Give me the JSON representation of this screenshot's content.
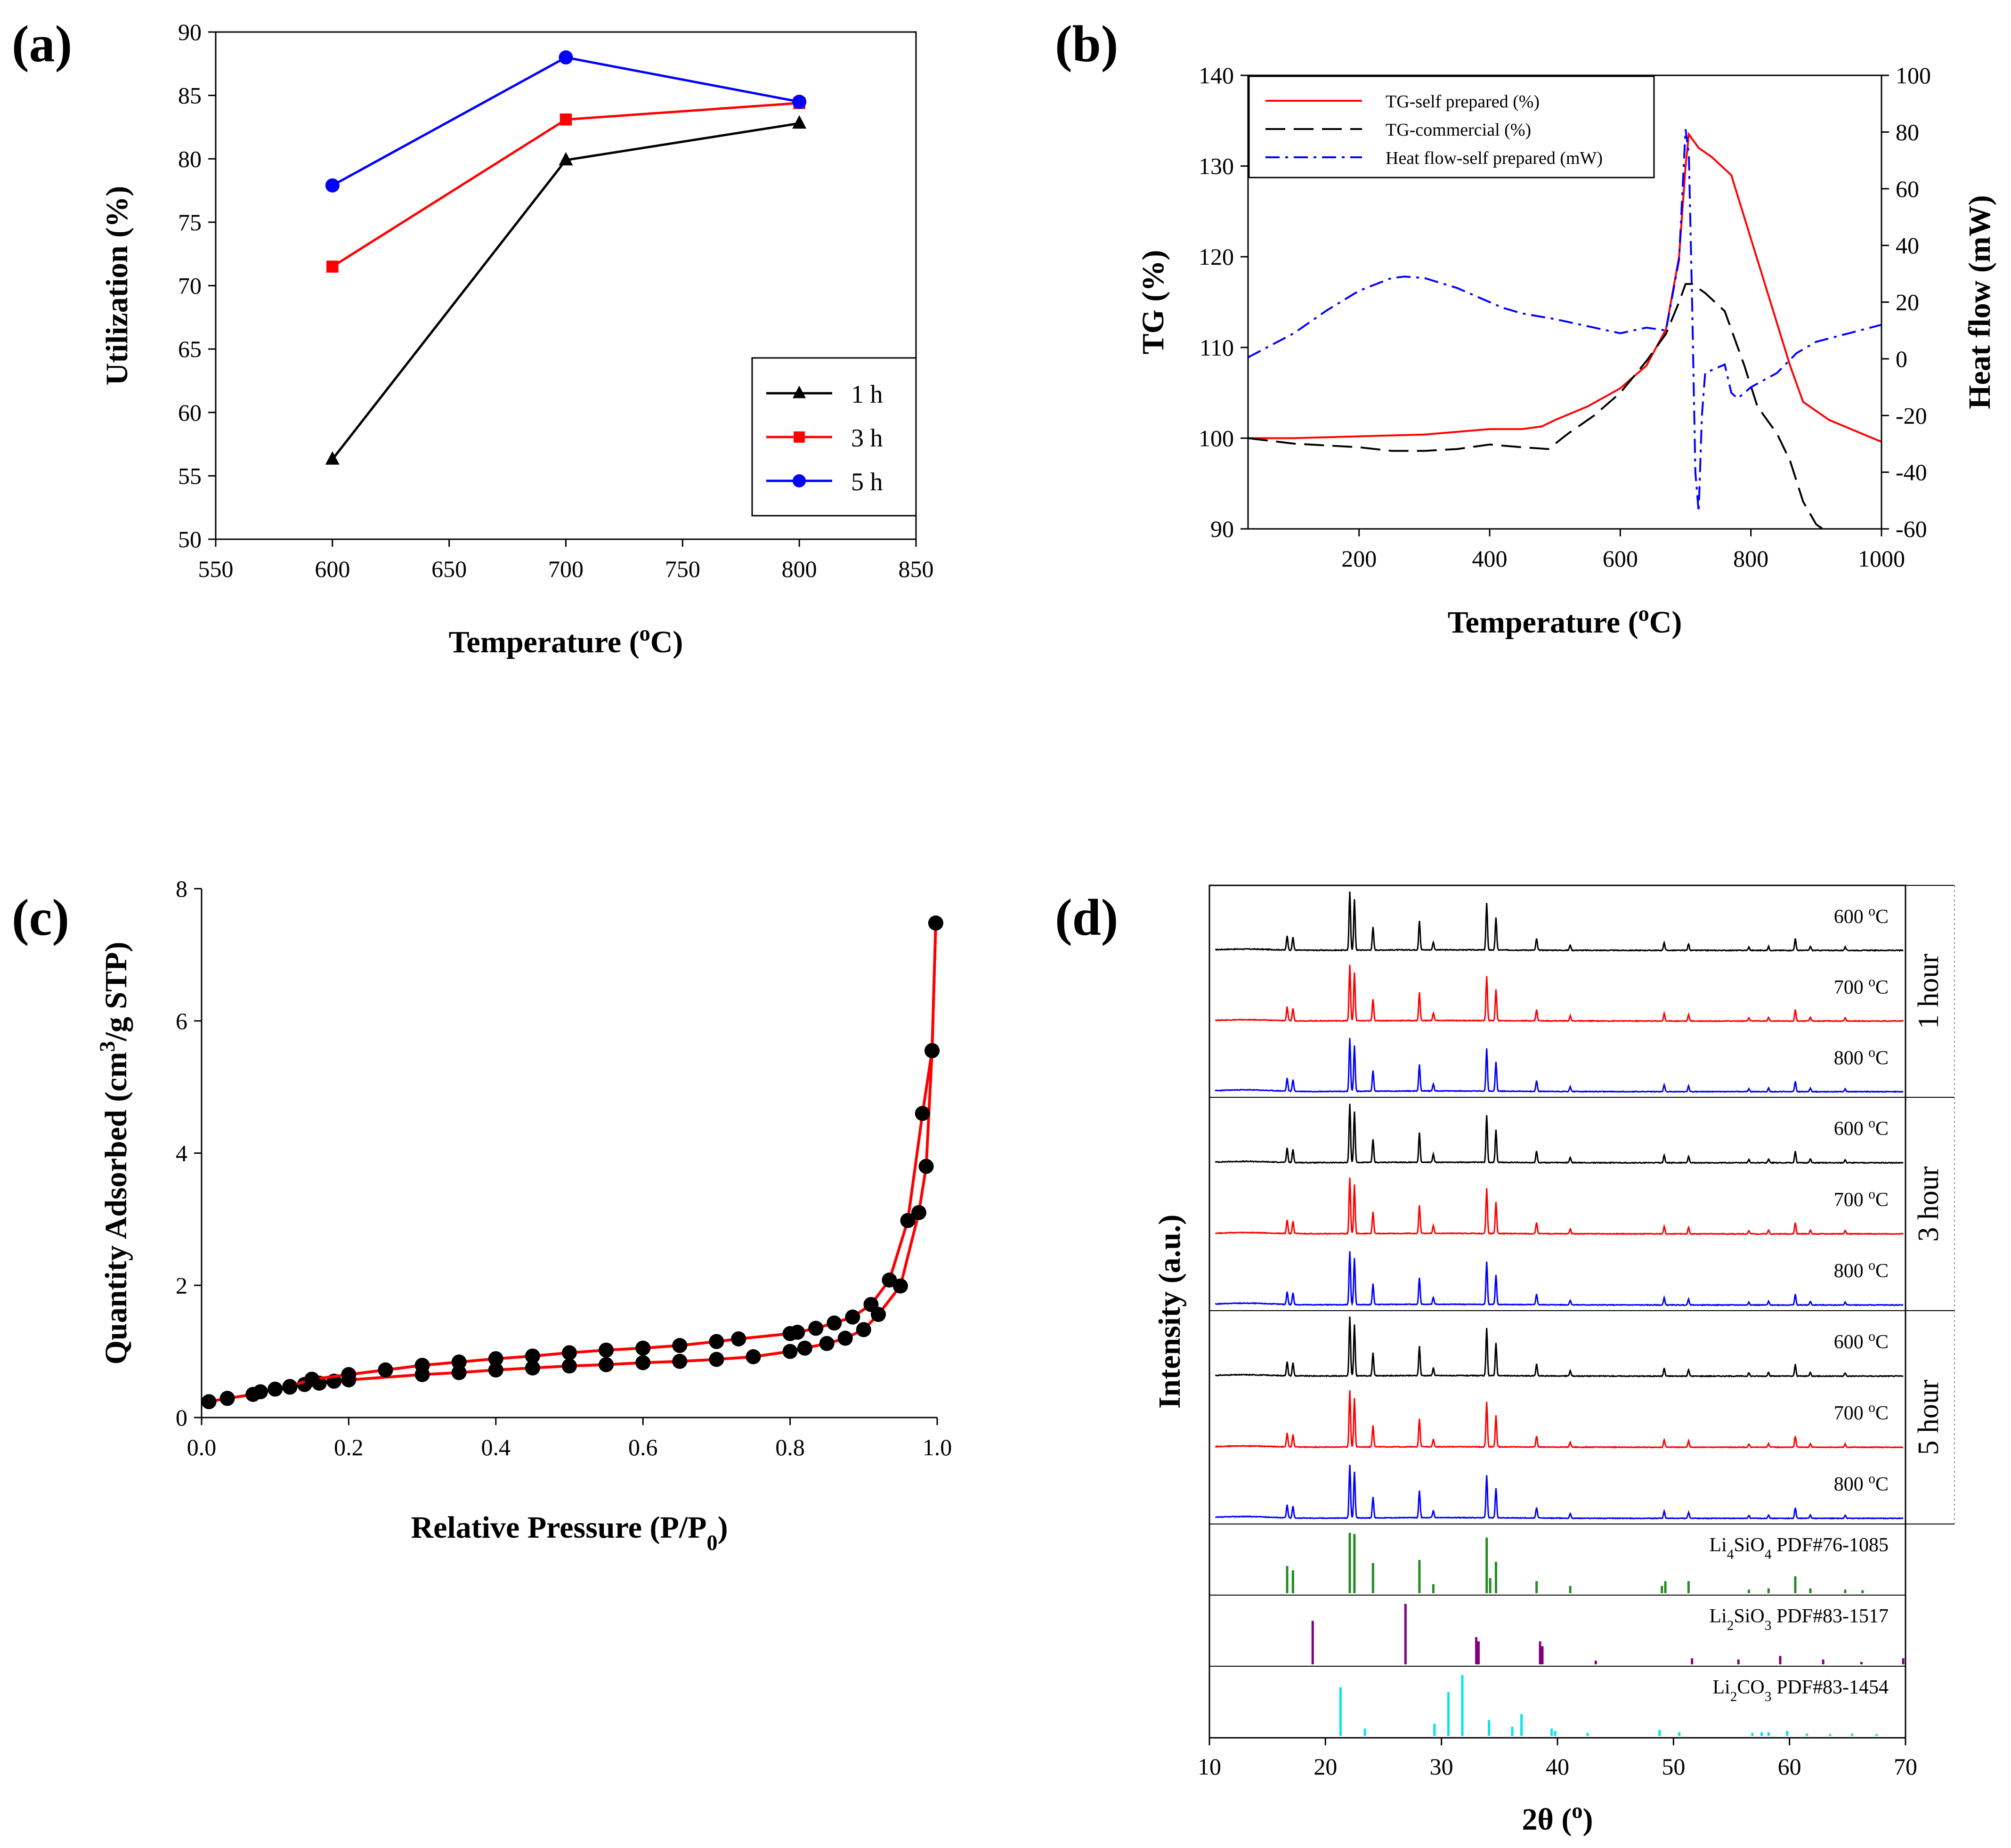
{
  "chart_data": [
    {
      "type": "line",
      "panel_label": "(a)",
      "xlabel": "Temperature (",
      "xlabel_sup": "o",
      "xlabel_end": "C)",
      "ylabel": "Utilization (%)",
      "xlim": [
        550,
        850
      ],
      "ylim": [
        50,
        90
      ],
      "xticks": [
        "550",
        "600",
        "650",
        "700",
        "750",
        "800",
        "850"
      ],
      "yticks": [
        "50",
        "55",
        "60",
        "65",
        "70",
        "75",
        "80",
        "85",
        "90"
      ],
      "x": [
        600,
        700,
        800
      ],
      "series": [
        {
          "name": "1 h",
          "values": [
            56.3,
            79.9,
            82.8
          ],
          "color": "#000000",
          "marker": "triangle"
        },
        {
          "name": "3 h",
          "values": [
            71.5,
            83.1,
            84.4
          ],
          "color": "#ff0000",
          "marker": "square"
        },
        {
          "name": "5 h",
          "values": [
            77.9,
            88.0,
            84.5
          ],
          "color": "#0000ff",
          "marker": "circle"
        }
      ],
      "legend": "bottom-right"
    },
    {
      "type": "line",
      "panel_label": "(b)",
      "xlabel": "Temperature (",
      "xlabel_sup": "o",
      "xlabel_end": "C)",
      "ylabel": "TG (%)",
      "y2label": "Heat flow (mW)",
      "xlim": [
        30,
        1000
      ],
      "ylim": [
        90,
        140
      ],
      "y2lim": [
        -60,
        100
      ],
      "xticks": [
        "200",
        "400",
        "600",
        "800",
        "1000"
      ],
      "yticks": [
        "90",
        "100",
        "110",
        "120",
        "130",
        "140"
      ],
      "y2ticks": [
        "-60",
        "-40",
        "-20",
        "0",
        "20",
        "40",
        "60",
        "80",
        "100"
      ],
      "series": [
        {
          "name": "TG-self prepared (%)",
          "axis": "left",
          "color": "#ff0000",
          "dash": "solid",
          "x": [
            30,
            100,
            200,
            300,
            400,
            450,
            480,
            500,
            550,
            600,
            640,
            670,
            690,
            700,
            705,
            710,
            720,
            740,
            770,
            800,
            830,
            860,
            880,
            920,
            960,
            1000
          ],
          "y": [
            100,
            100,
            100.2,
            100.4,
            101,
            101,
            101.3,
            102,
            103.5,
            105.5,
            108,
            112,
            120,
            130,
            133.5,
            133,
            132,
            131,
            129,
            122,
            115,
            108,
            104,
            102,
            100.8,
            99.6
          ]
        },
        {
          "name": "TG-commercial (%)",
          "axis": "left",
          "color": "#000000",
          "dash": "longdash",
          "x": [
            30,
            100,
            200,
            250,
            300,
            350,
            400,
            450,
            490,
            520,
            560,
            600,
            640,
            670,
            690,
            700,
            710,
            730,
            760,
            790,
            810,
            840,
            860,
            880,
            900,
            910
          ],
          "y": [
            100,
            99.4,
            99,
            98.6,
            98.6,
            98.8,
            99.3,
            99,
            98.8,
            100.5,
            102.5,
            105,
            108.5,
            111.5,
            115,
            117,
            117,
            116,
            114,
            108,
            103.5,
            100.5,
            97.5,
            93,
            90.5,
            90
          ]
        },
        {
          "name": "Heat flow-self prepared (mW)",
          "axis": "right",
          "color": "#0000ff",
          "dash": "dashdot",
          "x": [
            30,
            100,
            150,
            200,
            250,
            270,
            300,
            350,
            400,
            420,
            450,
            500,
            550,
            600,
            640,
            670,
            690,
            700,
            705,
            710,
            715,
            720,
            725,
            730,
            740,
            750,
            760,
            770,
            780,
            800,
            840,
            870,
            900,
            950,
            1000
          ],
          "y": [
            0.5,
            9,
            17,
            24,
            28.5,
            29,
            28.5,
            25,
            20,
            18,
            16,
            14,
            11.5,
            9,
            11,
            10,
            35,
            81,
            72,
            20,
            -40,
            -54,
            -20,
            -5,
            -4,
            -3,
            -2,
            -12,
            -14,
            -10,
            -5,
            2,
            6,
            9,
            12
          ]
        }
      ],
      "legend": "top-left"
    },
    {
      "type": "scatter",
      "panel_label": "(c)",
      "xlabel": "Relative Pressure (P/P",
      "xlabel_sub": "0",
      "xlabel_end": ")",
      "ylabel": "Quantity Adsorbed (cm",
      "ylabel_sup": "3",
      "ylabel_end": "/g STP)",
      "xlim": [
        0,
        1
      ],
      "ylim": [
        0,
        8
      ],
      "xticks": [
        "0.0",
        "0.2",
        "0.4",
        "0.6",
        "0.8",
        "1.0"
      ],
      "yticks": [
        "0",
        "2",
        "4",
        "6",
        "8"
      ],
      "series": [
        {
          "name": "adsorption",
          "x": [
            0.01,
            0.035,
            0.07,
            0.08,
            0.1,
            0.12,
            0.14,
            0.16,
            0.18,
            0.2,
            0.3,
            0.35,
            0.4,
            0.45,
            0.5,
            0.55,
            0.6,
            0.65,
            0.7,
            0.75,
            0.8,
            0.82,
            0.85,
            0.875,
            0.9,
            0.92,
            0.95,
            0.975,
            0.985,
            0.993,
            0.998
          ],
          "y": [
            0.24,
            0.29,
            0.35,
            0.39,
            0.43,
            0.46,
            0.5,
            0.52,
            0.55,
            0.57,
            0.65,
            0.68,
            0.72,
            0.75,
            0.78,
            0.8,
            0.83,
            0.85,
            0.88,
            0.92,
            1.0,
            1.05,
            1.12,
            1.2,
            1.33,
            1.56,
            1.99,
            3.1,
            3.8,
            5.55,
            7.48
          ]
        },
        {
          "name": "desorption",
          "x": [
            0.998,
            0.993,
            0.98,
            0.96,
            0.935,
            0.91,
            0.885,
            0.86,
            0.835,
            0.81,
            0.8,
            0.73,
            0.7,
            0.65,
            0.6,
            0.55,
            0.5,
            0.45,
            0.4,
            0.35,
            0.3,
            0.25,
            0.2,
            0.15,
            0.12
          ],
          "y": [
            7.48,
            5.55,
            4.6,
            2.98,
            2.08,
            1.71,
            1.52,
            1.43,
            1.35,
            1.29,
            1.27,
            1.19,
            1.15,
            1.09,
            1.05,
            1.02,
            0.98,
            0.93,
            0.89,
            0.84,
            0.79,
            0.72,
            0.65,
            0.58,
            0.47
          ]
        }
      ],
      "color_line": "#ff0000",
      "color_marker": "#000000"
    },
    {
      "type": "line",
      "panel_label": "(d)",
      "xlabel": "2θ (",
      "xlabel_sup": "o",
      "xlabel_end": ")",
      "ylabel": "Intensity (a.u.)",
      "xlim": [
        10,
        70
      ],
      "xticks": [
        "10",
        "20",
        "30",
        "40",
        "50",
        "60",
        "70"
      ],
      "groups": [
        {
          "name": "1 hour",
          "traces": [
            {
              "label": "600 ",
              "sup": "o",
              "unit": "C",
              "color": "#000000"
            },
            {
              "label": "700 ",
              "sup": "o",
              "unit": "C",
              "color": "#ff0000"
            },
            {
              "label": "800 ",
              "sup": "o",
              "unit": "C",
              "color": "#0000ff"
            }
          ]
        },
        {
          "name": "3 hour",
          "traces": [
            {
              "label": "600 ",
              "sup": "o",
              "unit": "C",
              "color": "#000000"
            },
            {
              "label": "700 ",
              "sup": "o",
              "unit": "C",
              "color": "#ff0000"
            },
            {
              "label": "800 ",
              "sup": "o",
              "unit": "C",
              "color": "#0000ff"
            }
          ]
        },
        {
          "name": "5 hour",
          "traces": [
            {
              "label": "600 ",
              "sup": "o",
              "unit": "C",
              "color": "#000000"
            },
            {
              "label": "700 ",
              "sup": "o",
              "unit": "C",
              "color": "#ff0000"
            },
            {
              "label": "800 ",
              "sup": "o",
              "unit": "C",
              "color": "#0000ff"
            }
          ]
        }
      ],
      "peaks": [
        {
          "pos": 16.7,
          "h": 0.22
        },
        {
          "pos": 17.2,
          "h": 0.2
        },
        {
          "pos": 22.1,
          "h": 0.9
        },
        {
          "pos": 22.5,
          "h": 0.78
        },
        {
          "pos": 24.1,
          "h": 0.35
        },
        {
          "pos": 28.1,
          "h": 0.45
        },
        {
          "pos": 29.3,
          "h": 0.12
        },
        {
          "pos": 33.9,
          "h": 0.72
        },
        {
          "pos": 34.7,
          "h": 0.5
        },
        {
          "pos": 38.2,
          "h": 0.18
        },
        {
          "pos": 41.1,
          "h": 0.08
        },
        {
          "pos": 49.2,
          "h": 0.12
        },
        {
          "pos": 51.3,
          "h": 0.1
        },
        {
          "pos": 56.5,
          "h": 0.05
        },
        {
          "pos": 58.2,
          "h": 0.06
        },
        {
          "pos": 60.5,
          "h": 0.18
        },
        {
          "pos": 61.8,
          "h": 0.06
        },
        {
          "pos": 64.8,
          "h": 0.05
        }
      ],
      "references": [
        {
          "prefix": "Li",
          "sub1": "4",
          "mid": "SiO",
          "sub2": "4",
          "suffix": " PDF#76-1085",
          "color": "#228b22",
          "sticks": [
            [
              16.7,
              0.45
            ],
            [
              17.2,
              0.38
            ],
            [
              22.1,
              1.0
            ],
            [
              22.5,
              0.98
            ],
            [
              24.1,
              0.5
            ],
            [
              28.1,
              0.55
            ],
            [
              29.3,
              0.15
            ],
            [
              33.9,
              0.92
            ],
            [
              34.2,
              0.25
            ],
            [
              34.7,
              0.52
            ],
            [
              38.2,
              0.2
            ],
            [
              41.1,
              0.12
            ],
            [
              49.0,
              0.12
            ],
            [
              49.3,
              0.2
            ],
            [
              51.3,
              0.2
            ],
            [
              56.5,
              0.06
            ],
            [
              58.2,
              0.08
            ],
            [
              60.5,
              0.28
            ],
            [
              61.8,
              0.08
            ],
            [
              64.8,
              0.06
            ],
            [
              66.3,
              0.05
            ]
          ]
        },
        {
          "prefix": "Li",
          "sub1": "2",
          "mid": "SiO",
          "sub2": "3",
          "suffix": " PDF#83-1517",
          "color": "#800080",
          "sticks": [
            [
              18.9,
              0.72
            ],
            [
              26.9,
              1.0
            ],
            [
              33.0,
              0.45
            ],
            [
              33.2,
              0.38
            ],
            [
              38.5,
              0.38
            ],
            [
              38.7,
              0.3
            ],
            [
              43.3,
              0.06
            ],
            [
              51.6,
              0.1
            ],
            [
              55.6,
              0.08
            ],
            [
              59.2,
              0.14
            ],
            [
              62.9,
              0.08
            ],
            [
              66.2,
              0.04
            ],
            [
              69.8,
              0.1
            ]
          ]
        },
        {
          "prefix": "Li",
          "sub1": "2",
          "mid": "CO",
          "sub2": "3",
          "suffix": " PDF#83-1454",
          "color": "#00e5ee",
          "sticks": [
            [
              21.3,
              0.8
            ],
            [
              23.4,
              0.12
            ],
            [
              29.4,
              0.2
            ],
            [
              30.6,
              0.72
            ],
            [
              31.8,
              1.0
            ],
            [
              34.1,
              0.26
            ],
            [
              36.1,
              0.15
            ],
            [
              36.9,
              0.36
            ],
            [
              39.5,
              0.12
            ],
            [
              39.8,
              0.08
            ],
            [
              42.6,
              0.05
            ],
            [
              48.8,
              0.1
            ],
            [
              50.5,
              0.06
            ],
            [
              56.8,
              0.05
            ],
            [
              57.6,
              0.06
            ],
            [
              58.2,
              0.06
            ],
            [
              59.8,
              0.08
            ],
            [
              61.5,
              0.04
            ],
            [
              63.5,
              0.03
            ],
            [
              65.4,
              0.04
            ],
            [
              67.5,
              0.03
            ]
          ]
        }
      ]
    }
  ]
}
